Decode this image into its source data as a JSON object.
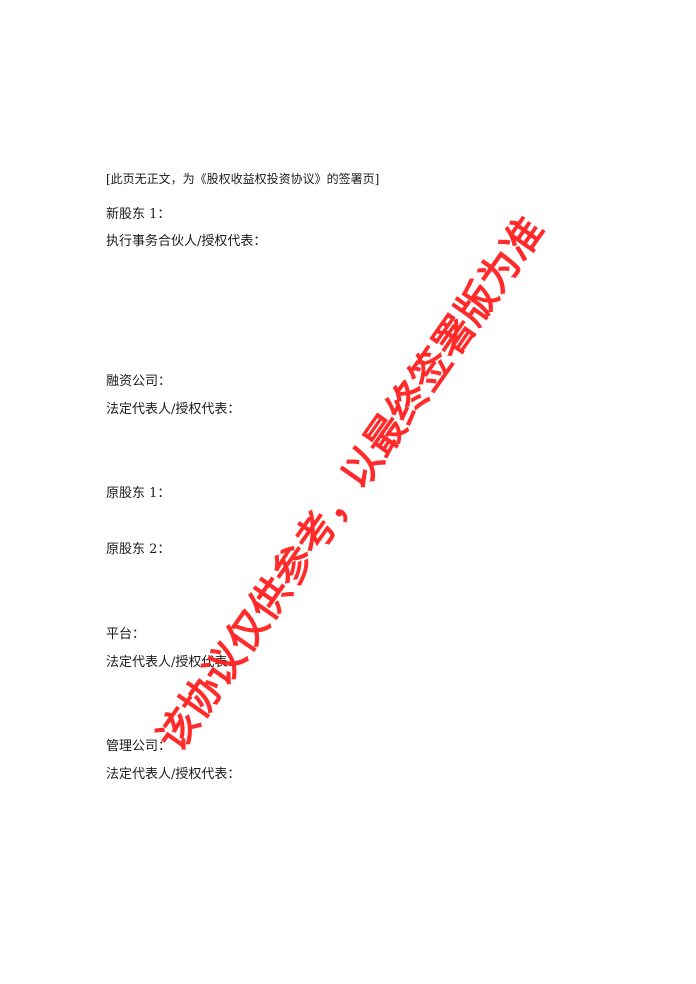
{
  "document": {
    "header_note": "[此页无正文，为《股权收益权投资协议》的签署页]",
    "sections": {
      "new_shareholder_1": "新股东 1：",
      "executive_partner": "执行事务合伙人/授权代表：",
      "financing_company": "融资公司：",
      "legal_rep_1": "法定代表人/授权代表：",
      "original_shareholder_1": "原股东 1：",
      "original_shareholder_2": "原股东 2：",
      "platform": "平台：",
      "legal_rep_2": "法定代表人/授权代表：",
      "management_company": "管理公司：",
      "legal_rep_3": "法定代表人/授权代表："
    },
    "watermark": "该协议仅供参考，以最终签署版为准",
    "watermark_color": "#ff2020"
  }
}
